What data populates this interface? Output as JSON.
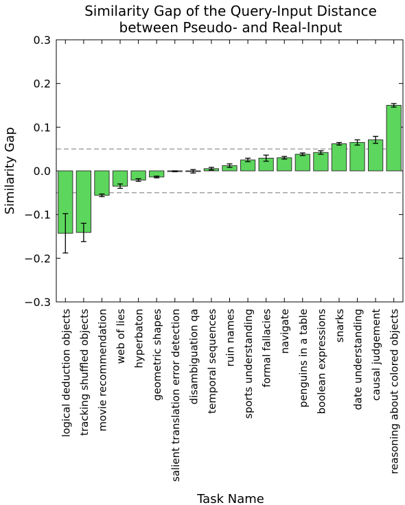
{
  "chart_data": {
    "type": "bar",
    "title_lines": [
      "Similarity Gap of the Query-Input Distance",
      "between Pseudo- and Real-Input"
    ],
    "xlabel": "Task Name",
    "ylabel": "Similarity Gap",
    "ylim": [
      -0.3,
      0.3
    ],
    "yticks": [
      -0.3,
      -0.2,
      -0.1,
      0.0,
      0.1,
      0.2,
      0.3
    ],
    "ytick_labels": [
      "−0.3",
      "−0.2",
      "−0.1",
      "0.0",
      "0.1",
      "0.2",
      "0.3"
    ],
    "reference_lines": [
      0.05,
      -0.05
    ],
    "grid": false,
    "bar_color": "#5cd65c",
    "edge_color": "#333333",
    "reference_line_color": "#9a9a9a",
    "categories": [
      "logical deduction objects",
      "tracking shuffled objects",
      "movie recommendation",
      "web of lies",
      "hyperbaton",
      "geometric shapes",
      "salient translation error detection",
      "disambiguation qa",
      "temporal sequences",
      "ruin names",
      "sports understanding",
      "formal fallacies",
      "navigate",
      "penguins in a table",
      "boolean expressions",
      "snarks",
      "date understanding",
      "causal judgement",
      "reasoning about colored objects"
    ],
    "values": [
      -0.143,
      -0.141,
      -0.056,
      -0.035,
      -0.021,
      -0.014,
      -0.001,
      -0.001,
      0.005,
      0.012,
      0.025,
      0.029,
      0.03,
      0.038,
      0.042,
      0.062,
      0.065,
      0.071,
      0.15
    ],
    "errors": [
      0.045,
      0.021,
      0.003,
      0.005,
      0.003,
      0.002,
      0.001,
      0.004,
      0.003,
      0.004,
      0.004,
      0.007,
      0.003,
      0.003,
      0.004,
      0.003,
      0.006,
      0.008,
      0.004
    ]
  }
}
